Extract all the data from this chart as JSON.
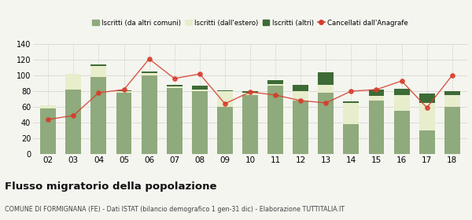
{
  "years": [
    "02",
    "03",
    "04",
    "05",
    "06",
    "07",
    "08",
    "09",
    "10",
    "11",
    "12",
    "13",
    "14",
    "15",
    "16",
    "17",
    "18"
  ],
  "iscritti_altri_comuni": [
    58,
    82,
    98,
    78,
    100,
    84,
    80,
    60,
    75,
    87,
    68,
    78,
    38,
    68,
    55,
    30,
    60
  ],
  "iscritti_estero": [
    4,
    20,
    14,
    2,
    3,
    2,
    2,
    20,
    3,
    2,
    12,
    10,
    27,
    6,
    20,
    35,
    15
  ],
  "iscritti_altri": [
    0,
    0,
    2,
    1,
    2,
    2,
    5,
    1,
    2,
    5,
    8,
    16,
    2,
    8,
    8,
    12,
    5
  ],
  "cancellati": [
    44,
    49,
    78,
    82,
    121,
    96,
    102,
    64,
    79,
    75,
    68,
    65,
    80,
    82,
    93,
    59,
    100
  ],
  "ylim": [
    0,
    140
  ],
  "yticks": [
    0,
    20,
    40,
    60,
    80,
    100,
    120,
    140
  ],
  "color_altri_comuni": "#8faa7c",
  "color_estero": "#e8edcc",
  "color_altri": "#3d6b35",
  "color_cancellati": "#d63b2a",
  "bg_color": "#f5f5f0",
  "grid_color": "#d0d0c8",
  "title": "Flusso migratorio della popolazione",
  "subtitle": "COMUNE DI FORMIGNANA (FE) - Dati ISTAT (bilancio demografico 1 gen-31 dic) - Elaborazione TUTTITALIA.IT",
  "legend_labels": [
    "Iscritti (da altri comuni)",
    "Iscritti (dall'estero)",
    "Iscritti (altri)",
    "Cancellati dall'Anagrafe"
  ]
}
